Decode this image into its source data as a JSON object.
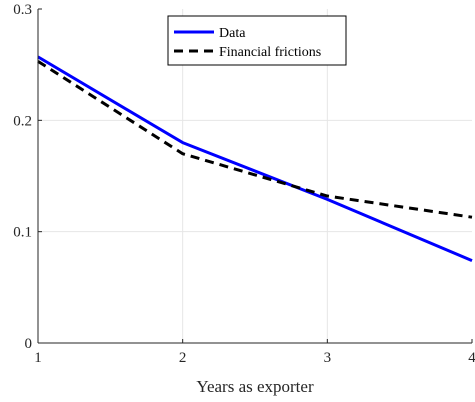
{
  "chart_data": {
    "type": "line",
    "title": "",
    "xlabel": "Years as exporter",
    "ylabel": "",
    "xlim": [
      1,
      4
    ],
    "ylim": [
      0,
      0.3
    ],
    "x_ticks": [
      1,
      2,
      3,
      4
    ],
    "y_ticks": [
      0,
      0.1,
      0.2,
      0.3
    ],
    "x_tick_labels": [
      "1",
      "2",
      "3",
      "4"
    ],
    "y_tick_labels": [
      "0",
      "0.1",
      "0.2",
      "0.3"
    ],
    "grid": true,
    "legend_position": "top-center",
    "x": [
      1,
      2,
      3,
      4
    ],
    "series": [
      {
        "name": "Data",
        "values": [
          0.257,
          0.18,
          0.129,
          0.074
        ],
        "color": "#0000ff",
        "style": "solid"
      },
      {
        "name": "Financial frictions",
        "values": [
          0.253,
          0.17,
          0.132,
          0.113
        ],
        "color": "#000000",
        "style": "dashed"
      }
    ]
  }
}
